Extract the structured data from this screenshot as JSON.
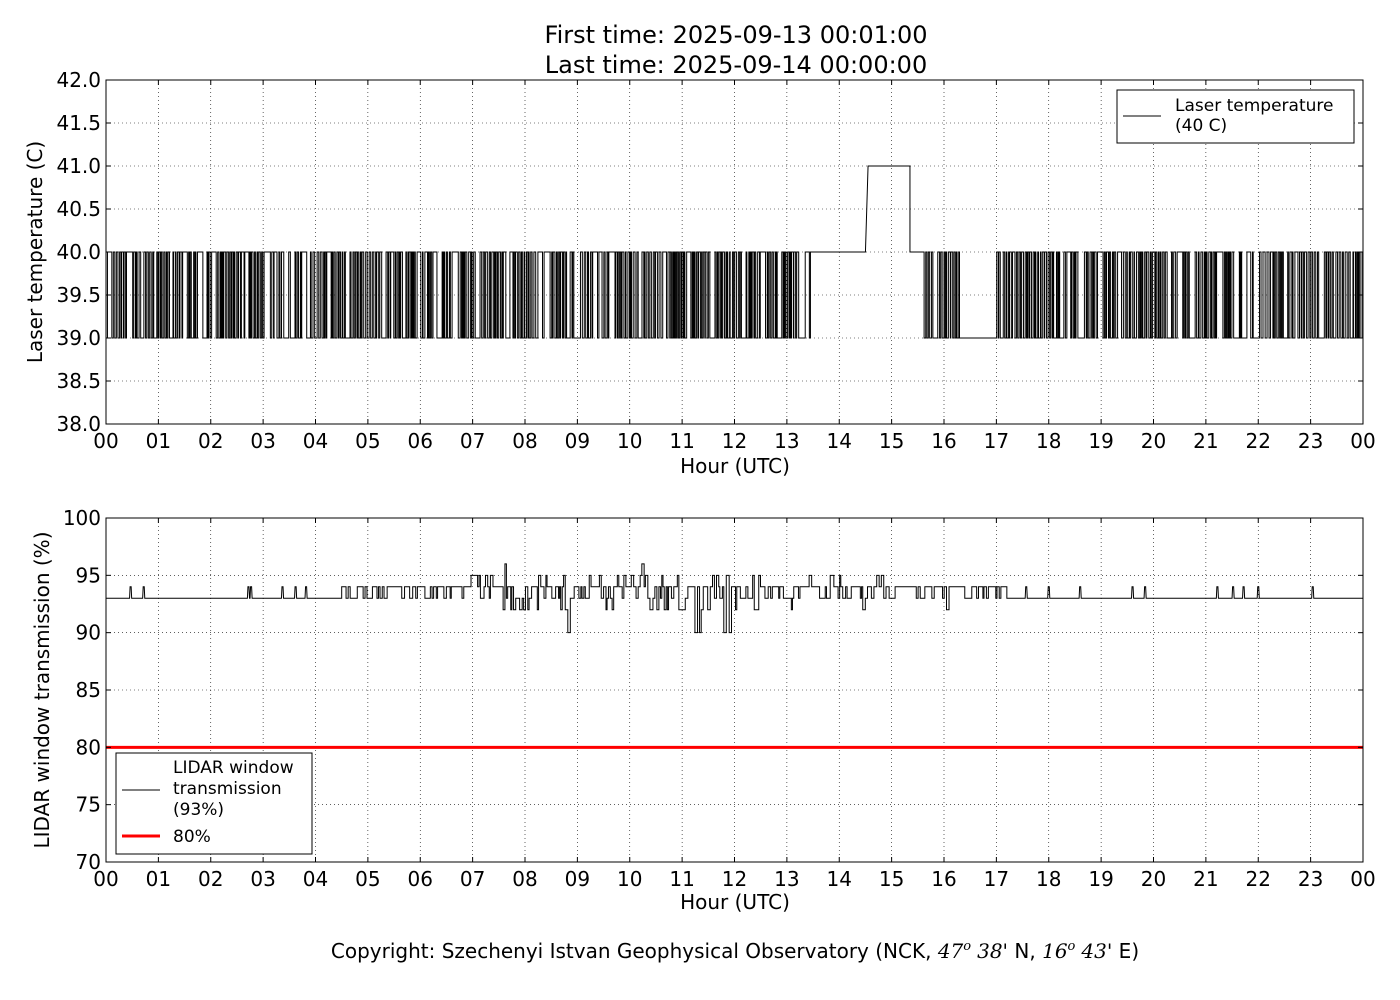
{
  "header": {
    "line1": "First time: 2025-09-13 00:01:00",
    "line2": "Last time: 2025-09-14 00:00:00"
  },
  "footer": {
    "prefix": "Copyright: Szechenyi Istvan Geophysical Observatory (NCK, ",
    "lat_deg": "47",
    "deg_sym": "o",
    "lat_min": "38'",
    "lat_dir": " N, ",
    "lon_deg": "16",
    "lon_min": "43'",
    "lon_dir": " E)"
  },
  "chart_data": [
    {
      "type": "line",
      "xlabel": "Hour (UTC)",
      "ylabel": "Laser temperature (C)",
      "xlim": [
        0,
        24
      ],
      "ylim": [
        38.0,
        42.0
      ],
      "xticks": [
        0,
        1,
        2,
        3,
        4,
        5,
        6,
        7,
        8,
        9,
        10,
        11,
        12,
        13,
        14,
        15,
        16,
        17,
        18,
        19,
        20,
        21,
        22,
        23,
        24
      ],
      "xtick_labels": [
        "00",
        "01",
        "02",
        "03",
        "04",
        "05",
        "06",
        "07",
        "08",
        "09",
        "10",
        "11",
        "12",
        "13",
        "14",
        "15",
        "16",
        "17",
        "18",
        "19",
        "20",
        "21",
        "22",
        "23",
        "00"
      ],
      "yticks": [
        38.0,
        38.5,
        39.0,
        39.5,
        40.0,
        40.5,
        41.0,
        41.5,
        42.0
      ],
      "ytick_labels": [
        "38.0",
        "38.5",
        "39.0",
        "39.5",
        "40.0",
        "40.5",
        "41.0",
        "41.5",
        "42.0"
      ],
      "grid": true,
      "legend_position": "top-right",
      "legend": [
        {
          "label_lines": [
            "Laser temperature",
            "(40 C)"
          ],
          "color": "#000000"
        }
      ],
      "series": [
        {
          "name": "Laser temperature (40 C)",
          "color": "#000000",
          "segments": [
            {
              "x_start": 0.0,
              "x_end": 13.45,
              "pattern": "toggle",
              "values": [
                39,
                40
              ]
            },
            {
              "x_start": 13.45,
              "x_end": 14.5,
              "pattern": "constant",
              "value": 40
            },
            {
              "x_start": 14.5,
              "x_end": 14.55,
              "pattern": "ramp",
              "from": 40,
              "to": 41
            },
            {
              "x_start": 14.55,
              "x_end": 15.35,
              "pattern": "constant",
              "value": 41
            },
            {
              "x_start": 15.35,
              "x_end": 15.62,
              "pattern": "constant",
              "value": 40
            },
            {
              "x_start": 15.62,
              "x_end": 16.3,
              "pattern": "toggle",
              "values": [
                39,
                40
              ]
            },
            {
              "x_start": 16.3,
              "x_end": 16.98,
              "pattern": "constant",
              "value": 39
            },
            {
              "x_start": 16.98,
              "x_end": 24.0,
              "pattern": "toggle",
              "values": [
                39,
                40
              ]
            }
          ]
        }
      ]
    },
    {
      "type": "line",
      "xlabel": "Hour (UTC)",
      "ylabel": "LIDAR window transmission (%)",
      "xlim": [
        0,
        24
      ],
      "ylim": [
        70,
        100
      ],
      "xticks": [
        0,
        1,
        2,
        3,
        4,
        5,
        6,
        7,
        8,
        9,
        10,
        11,
        12,
        13,
        14,
        15,
        16,
        17,
        18,
        19,
        20,
        21,
        22,
        23,
        24
      ],
      "xtick_labels": [
        "00",
        "01",
        "02",
        "03",
        "04",
        "05",
        "06",
        "07",
        "08",
        "09",
        "10",
        "11",
        "12",
        "13",
        "14",
        "15",
        "16",
        "17",
        "18",
        "19",
        "20",
        "21",
        "22",
        "23",
        "00"
      ],
      "yticks": [
        70,
        75,
        80,
        85,
        90,
        95,
        100
      ],
      "ytick_labels": [
        "70",
        "75",
        "80",
        "85",
        "90",
        "95",
        "100"
      ],
      "grid": true,
      "legend_position": "bottom-left",
      "legend": [
        {
          "label_lines": [
            "LIDAR window",
            "transmission",
            "(93%)"
          ],
          "color": "#000000"
        },
        {
          "label_lines": [
            "80%"
          ],
          "color": "#ff0000"
        }
      ],
      "series": [
        {
          "name": "LIDAR window transmission (93%)",
          "color": "#000000",
          "baseline": 93,
          "spikes": [
            0.45,
            0.7,
            2.7,
            2.75,
            3.35,
            3.6,
            3.8,
            17.55,
            17.98,
            18.58,
            19.58,
            19.82,
            21.2,
            21.5,
            21.7,
            21.98,
            23.02
          ],
          "spike_value": 94,
          "noisy_range": [
            4.5,
            17.2
          ],
          "noisy_min_observed": 90,
          "noisy_max_observed": 96
        },
        {
          "name": "80%",
          "color": "#ff0000",
          "constant": 80
        }
      ]
    }
  ]
}
